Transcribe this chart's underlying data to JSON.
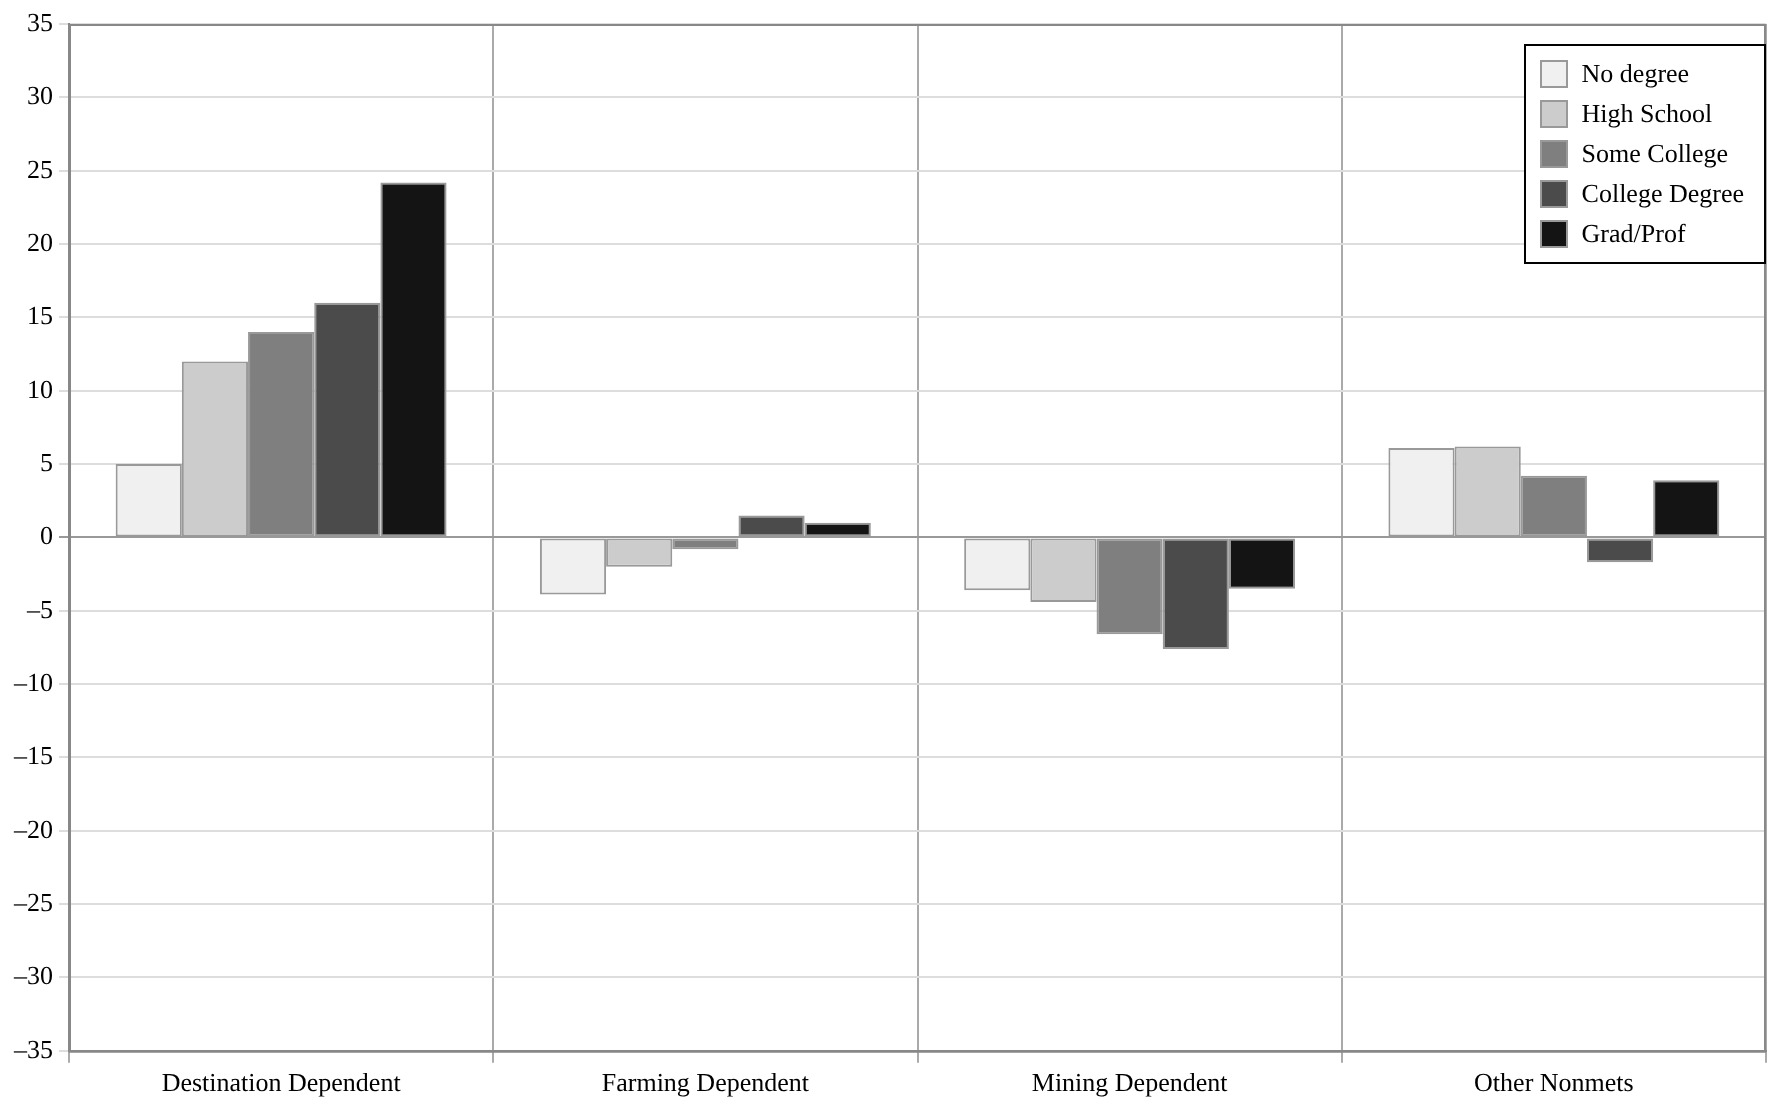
{
  "chart_data": {
    "type": "bar",
    "categories": [
      "Destination Dependent",
      "Farming Dependent",
      "Mining Dependent",
      "Other Nonmets"
    ],
    "series": [
      {
        "name": "No degree",
        "color": "#f0f0f0",
        "values": [
          5,
          -3.9,
          -3.6,
          6.1
        ]
      },
      {
        "name": "High School",
        "color": "#cbcccb",
        "values": [
          12,
          -2.0,
          -4.4,
          6.2
        ]
      },
      {
        "name": "Some College",
        "color": "#7f7f7f",
        "values": [
          14,
          -0.8,
          -6.6,
          4.2
        ]
      },
      {
        "name": "College Degree",
        "color": "#4b4b4b",
        "values": [
          16,
          1.5,
          -7.6,
          -1.7
        ]
      },
      {
        "name": "Grad/Prof",
        "color": "#141414",
        "values": [
          24.2,
          1.0,
          -3.5,
          3.9
        ]
      }
    ],
    "ylim": [
      -35,
      35
    ],
    "yticks": [
      {
        "value": -35,
        "label": "–35"
      },
      {
        "value": -30,
        "label": "–30"
      },
      {
        "value": -25,
        "label": "–25"
      },
      {
        "value": -20,
        "label": "–20"
      },
      {
        "value": -15,
        "label": "–15"
      },
      {
        "value": -10,
        "label": "–10"
      },
      {
        "value": -5,
        "label": "–5"
      },
      0,
      5,
      10,
      15,
      20,
      25,
      30,
      35
    ],
    "grid": true,
    "legend": "top right"
  }
}
